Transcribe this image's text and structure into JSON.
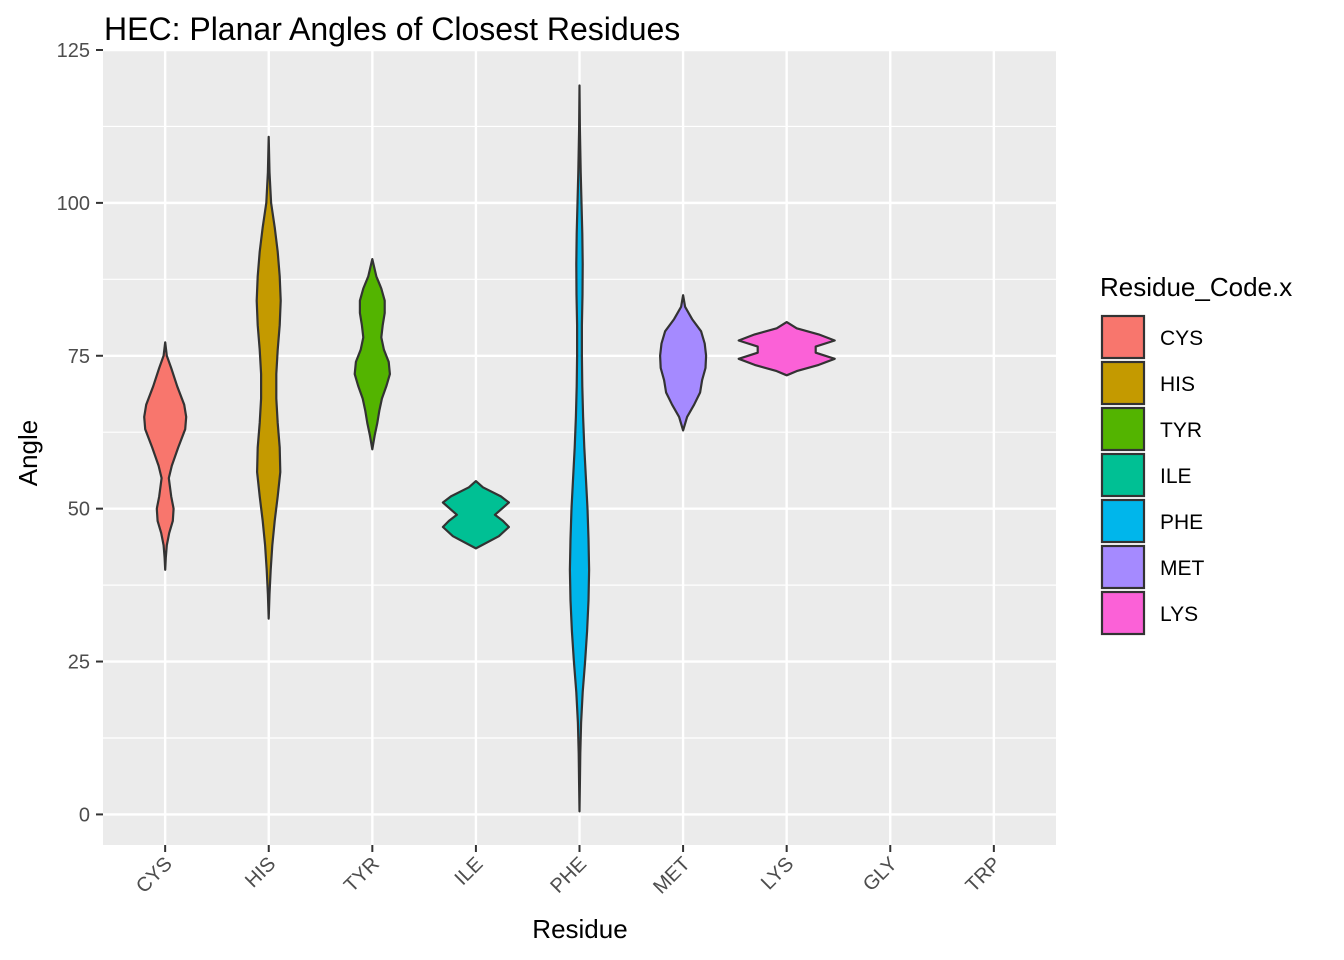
{
  "chart_data": {
    "type": "violin",
    "title": "HEC: Planar Angles of Closest Residues",
    "xlabel": "Residue",
    "ylabel": "Angle",
    "ylim": [
      -5,
      125
    ],
    "yticks": [
      0,
      25,
      50,
      75,
      100,
      125
    ],
    "categories": [
      "CYS",
      "HIS",
      "TYR",
      "ILE",
      "PHE",
      "MET",
      "LYS",
      "GLY",
      "TRP"
    ],
    "grid": true,
    "legend": {
      "title": "Residue_Code.x",
      "placement": "right",
      "entries": [
        {
          "label": "CYS",
          "color": "#F8766D"
        },
        {
          "label": "HIS",
          "color": "#C49A00"
        },
        {
          "label": "TYR",
          "color": "#53B400"
        },
        {
          "label": "ILE",
          "color": "#00C094"
        },
        {
          "label": "PHE",
          "color": "#00B6EB"
        },
        {
          "label": "MET",
          "color": "#A58AFF"
        },
        {
          "label": "LYS",
          "color": "#FB61D7"
        }
      ]
    },
    "series": [
      {
        "name": "CYS",
        "category": "CYS",
        "color": "#F8766D",
        "y": [
          77.2,
          75,
          73,
          70,
          67,
          65,
          63,
          60,
          57,
          55,
          52,
          50,
          48,
          46,
          44,
          42,
          40
        ],
        "half_width": [
          0,
          0.08,
          0.3,
          0.6,
          0.95,
          1.05,
          1.0,
          0.65,
          0.33,
          0.18,
          0.3,
          0.42,
          0.38,
          0.2,
          0.08,
          0.03,
          0
        ]
      },
      {
        "name": "HIS",
        "category": "HIS",
        "color": "#C49A00",
        "y": [
          110.8,
          105,
          100,
          96,
          92,
          88,
          84,
          80,
          76,
          72,
          68,
          64,
          60,
          56,
          52,
          48,
          44,
          40,
          36,
          32
        ],
        "half_width": [
          0,
          0.04,
          0.12,
          0.3,
          0.45,
          0.55,
          0.6,
          0.55,
          0.45,
          0.38,
          0.38,
          0.45,
          0.55,
          0.58,
          0.45,
          0.3,
          0.18,
          0.1,
          0.04,
          0
        ]
      },
      {
        "name": "TYR",
        "category": "TYR",
        "color": "#53B400",
        "y": [
          90.8,
          88,
          86,
          84,
          82,
          80,
          78,
          76,
          74,
          72,
          70,
          68,
          66,
          64,
          62,
          59.7
        ],
        "half_width": [
          0,
          0.2,
          0.45,
          0.62,
          0.62,
          0.52,
          0.45,
          0.58,
          0.82,
          0.88,
          0.7,
          0.48,
          0.35,
          0.25,
          0.12,
          0
        ]
      },
      {
        "name": "ILE",
        "category": "ILE",
        "color": "#00C094",
        "y": [
          54.5,
          53.5,
          52,
          51,
          50,
          49,
          48,
          47,
          45.5,
          43.5
        ],
        "half_width": [
          0,
          0.35,
          1.25,
          1.65,
          1.3,
          0.95,
          1.35,
          1.65,
          1.15,
          0
        ]
      },
      {
        "name": "PHE",
        "category": "PHE",
        "color": "#00B6EB",
        "y": [
          119.2,
          112,
          105,
          100,
          95,
          90,
          85,
          80,
          75,
          70,
          65,
          60,
          55,
          50,
          45,
          40,
          35,
          30,
          25,
          20,
          15,
          10,
          5,
          0.5
        ],
        "half_width": [
          0,
          0.02,
          0.06,
          0.1,
          0.14,
          0.16,
          0.15,
          0.12,
          0.12,
          0.14,
          0.18,
          0.24,
          0.32,
          0.4,
          0.45,
          0.48,
          0.45,
          0.38,
          0.28,
          0.16,
          0.08,
          0.04,
          0.02,
          0
        ]
      },
      {
        "name": "MET",
        "category": "MET",
        "color": "#A58AFF",
        "y": [
          84.9,
          83,
          81,
          79,
          77,
          75,
          73,
          71,
          69,
          67,
          65,
          62.8
        ],
        "half_width": [
          0,
          0.1,
          0.45,
          0.9,
          1.08,
          1.15,
          1.12,
          0.95,
          0.85,
          0.55,
          0.2,
          0
        ]
      },
      {
        "name": "LYS",
        "category": "LYS",
        "color": "#FB61D7",
        "y": [
          80.5,
          79.5,
          78.5,
          77.5,
          76.5,
          75.5,
          74.5,
          73.5,
          72.5,
          71.8
        ],
        "half_width": [
          0,
          0.5,
          1.6,
          2.4,
          1.45,
          1.45,
          2.4,
          1.6,
          0.5,
          0
        ]
      }
    ]
  }
}
